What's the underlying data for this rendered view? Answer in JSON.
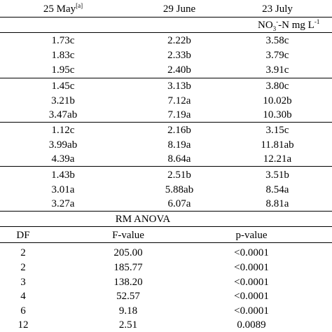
{
  "header": {
    "col1": "25 May",
    "col1_footnote": "[a]",
    "col2": "29 June",
    "col3": "23 July"
  },
  "unit": {
    "prefix": "NO",
    "sub": "3",
    "sup": "-",
    "mid": "-N mg L",
    "sup2": "-1"
  },
  "groups": [
    [
      [
        "1.73c",
        "2.22b",
        "3.58c"
      ],
      [
        "1.83c",
        "2.33b",
        "3.79c"
      ],
      [
        "1.95c",
        "2.40b",
        "3.91c"
      ]
    ],
    [
      [
        "1.45c",
        "3.13b",
        "3.80c"
      ],
      [
        "3.21b",
        "7.12a",
        "10.02b"
      ],
      [
        "3.47ab",
        "7.19a",
        "10.30b"
      ]
    ],
    [
      [
        "1.12c",
        "2.16b",
        "3.15c"
      ],
      [
        "3.99ab",
        "8.19a",
        "11.81ab"
      ],
      [
        "4.39a",
        "8.64a",
        "12.21a"
      ]
    ],
    [
      [
        "1.43b",
        "2.51b",
        "3.51b"
      ],
      [
        "3.01a",
        "5.88ab",
        "8.54a"
      ],
      [
        "3.27a",
        "6.07a",
        "8.81a"
      ]
    ]
  ],
  "anova": {
    "title": "RM ANOVA",
    "headers": [
      "DF",
      "F-value",
      "p-value"
    ],
    "rows": [
      [
        "2",
        "205.00",
        "<0.0001"
      ],
      [
        "2",
        "185.77",
        "<0.0001"
      ],
      [
        "3",
        "138.20",
        "<0.0001"
      ],
      [
        "4",
        "52.57",
        "<0.0001"
      ],
      [
        "6",
        "9.18",
        "<0.0001"
      ],
      [
        "12",
        "2.51",
        "0.0089"
      ]
    ]
  }
}
